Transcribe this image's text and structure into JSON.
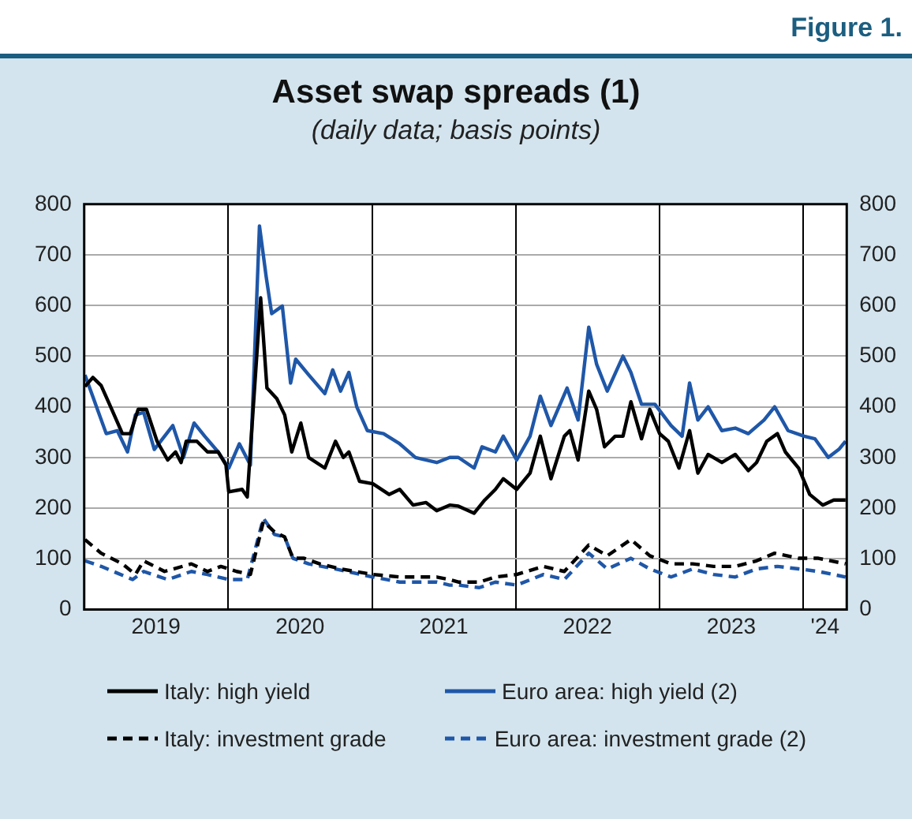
{
  "chart_data": {
    "type": "line",
    "title": "Asset swap spreads (1)",
    "subtitle": "(daily data; basis points)",
    "annotations": [
      "Figure 1."
    ],
    "xlim": [
      "2019-01-01",
      "2024-04-20"
    ],
    "xticks": [
      {
        "value": "2019-07-02",
        "label": "2019"
      },
      {
        "value": "2020-01-01",
        "label": null
      },
      {
        "value": "2020-07-02",
        "label": "2020"
      },
      {
        "value": "2021-01-01",
        "label": null
      },
      {
        "value": "2021-07-02",
        "label": "2021"
      },
      {
        "value": "2022-01-01",
        "label": null
      },
      {
        "value": "2022-07-02",
        "label": "2022"
      },
      {
        "value": "2023-01-01",
        "label": null
      },
      {
        "value": "2023-07-02",
        "label": "2023"
      },
      {
        "value": "2024-01-01",
        "label": null
      },
      {
        "value": "2024-02-25",
        "label": "'24"
      }
    ],
    "ylim": [
      0,
      800
    ],
    "yticks": [
      0,
      100,
      200,
      300,
      400,
      500,
      600,
      700,
      800
    ],
    "y2lim": [
      0,
      800
    ],
    "y2ticks": [
      0,
      100,
      200,
      300,
      400,
      500,
      600,
      700,
      800
    ],
    "grid": true,
    "legend": "bottom",
    "marker": "none",
    "series": [
      {
        "name": "Italy: high yield",
        "color": "#000000",
        "line_style": "solid",
        "x": [
          "2019-01-03",
          "2019-01-23",
          "2019-02-13",
          "2019-03-12",
          "2019-04-08",
          "2019-04-28",
          "2019-05-18",
          "2019-06-08",
          "2019-07-05",
          "2019-08-01",
          "2019-08-21",
          "2019-09-04",
          "2019-09-17",
          "2019-10-14",
          "2019-11-10",
          "2019-12-07",
          "2019-12-27",
          "2020-01-03",
          "2020-02-06",
          "2020-02-19",
          "2020-03-04",
          "2020-03-24",
          "2020-04-09",
          "2020-05-04",
          "2020-05-24",
          "2020-06-11",
          "2020-07-04",
          "2020-07-24",
          "2020-09-03",
          "2020-09-30",
          "2020-10-20",
          "2020-11-03",
          "2020-11-30",
          "2021-01-03",
          "2021-02-13",
          "2021-03-12",
          "2021-04-15",
          "2021-05-18",
          "2021-06-14",
          "2021-07-17",
          "2021-08-08",
          "2021-09-17",
          "2021-10-14",
          "2021-11-10",
          "2021-11-30",
          "2022-01-03",
          "2022-02-06",
          "2022-03-04",
          "2022-03-31",
          "2022-05-04",
          "2022-05-18",
          "2022-06-08",
          "2022-07-05",
          "2022-07-25",
          "2022-08-14",
          "2022-09-10",
          "2022-09-30",
          "2022-10-20",
          "2022-11-16",
          "2022-12-07",
          "2023-01-01",
          "2023-01-23",
          "2023-02-19",
          "2023-03-18",
          "2023-04-08",
          "2023-05-04",
          "2023-06-08",
          "2023-07-12",
          "2023-08-14",
          "2023-09-04",
          "2023-09-30",
          "2023-10-27",
          "2023-11-16",
          "2023-12-20",
          "2024-01-17",
          "2024-02-19",
          "2024-03-18",
          "2024-04-17"
        ],
        "values": [
          440,
          458,
          442,
          395,
          347,
          347,
          395,
          395,
          332,
          295,
          311,
          290,
          332,
          332,
          311,
          311,
          285,
          232,
          237,
          222,
          384,
          615,
          437,
          416,
          384,
          311,
          368,
          300,
          279,
          332,
          300,
          311,
          253,
          248,
          227,
          237,
          206,
          211,
          195,
          206,
          204,
          190,
          216,
          237,
          258,
          237,
          269,
          342,
          258,
          342,
          353,
          295,
          431,
          395,
          321,
          342,
          342,
          410,
          337,
          395,
          347,
          332,
          279,
          353,
          269,
          306,
          290,
          306,
          274,
          290,
          332,
          347,
          311,
          279,
          227,
          206,
          216,
          216
        ]
      },
      {
        "name": "Euro area: high yield (2)",
        "color": "#1f57a8",
        "line_style": "solid",
        "x": [
          "2019-01-03",
          "2019-01-30",
          "2019-02-26",
          "2019-03-26",
          "2019-04-21",
          "2019-05-11",
          "2019-06-01",
          "2019-06-28",
          "2019-08-14",
          "2019-09-10",
          "2019-10-07",
          "2019-11-03",
          "2019-12-07",
          "2020-01-03",
          "2020-01-30",
          "2020-02-27",
          "2020-03-21",
          "2020-04-07",
          "2020-04-21",
          "2020-05-18",
          "2020-06-08",
          "2020-06-21",
          "2020-07-24",
          "2020-09-03",
          "2020-09-23",
          "2020-10-13",
          "2020-11-03",
          "2020-11-23",
          "2020-12-20",
          "2021-01-30",
          "2021-03-12",
          "2021-04-21",
          "2021-06-14",
          "2021-07-17",
          "2021-08-08",
          "2021-09-17",
          "2021-10-07",
          "2021-11-10",
          "2021-11-30",
          "2022-01-03",
          "2022-02-06",
          "2022-03-04",
          "2022-03-31",
          "2022-05-11",
          "2022-06-08",
          "2022-07-05",
          "2022-07-25",
          "2022-08-21",
          "2022-09-30",
          "2022-10-20",
          "2022-11-16",
          "2022-12-20",
          "2023-01-30",
          "2023-02-27",
          "2023-03-18",
          "2023-04-08",
          "2023-05-04",
          "2023-06-08",
          "2023-07-12",
          "2023-08-14",
          "2023-09-23",
          "2023-10-20",
          "2023-11-23",
          "2024-01-03",
          "2024-01-30",
          "2024-03-04",
          "2024-03-31",
          "2024-04-17"
        ],
        "values": [
          463,
          405,
          347,
          353,
          311,
          384,
          389,
          316,
          363,
          300,
          368,
          342,
          311,
          279,
          327,
          285,
          757,
          657,
          584,
          599,
          447,
          494,
          463,
          426,
          473,
          431,
          468,
          400,
          353,
          347,
          327,
          300,
          290,
          300,
          300,
          279,
          321,
          311,
          342,
          295,
          342,
          421,
          363,
          437,
          374,
          557,
          484,
          431,
          500,
          468,
          405,
          405,
          363,
          342,
          447,
          374,
          400,
          353,
          358,
          347,
          374,
          400,
          353,
          342,
          337,
          300,
          316,
          332
        ]
      },
      {
        "name": "Italy: investment grade",
        "color": "#000000",
        "line_style": "dashed",
        "x": [
          "2019-01-03",
          "2019-02-13",
          "2019-04-08",
          "2019-05-11",
          "2019-06-01",
          "2019-07-24",
          "2019-09-30",
          "2019-11-10",
          "2019-12-14",
          "2020-01-23",
          "2020-02-27",
          "2020-03-31",
          "2020-04-28",
          "2020-05-24",
          "2020-06-14",
          "2020-07-12",
          "2020-08-21",
          "2020-10-13",
          "2021-01-03",
          "2021-03-12",
          "2021-06-14",
          "2021-07-17",
          "2021-08-08",
          "2021-09-30",
          "2021-11-10",
          "2022-01-03",
          "2022-03-12",
          "2022-05-04",
          "2022-07-05",
          "2022-08-21",
          "2022-10-20",
          "2022-12-07",
          "2023-01-30",
          "2023-03-26",
          "2023-05-18",
          "2023-07-12",
          "2023-09-04",
          "2023-10-20",
          "2023-12-20",
          "2024-02-08",
          "2024-04-17"
        ],
        "values": [
          138,
          111,
          90,
          69,
          96,
          75,
          90,
          75,
          85,
          75,
          69,
          174,
          153,
          143,
          101,
          101,
          90,
          80,
          69,
          64,
          64,
          59,
          54,
          54,
          64,
          69,
          85,
          75,
          127,
          106,
          138,
          106,
          90,
          90,
          85,
          85,
          96,
          111,
          101,
          101,
          90
        ]
      },
      {
        "name": "Euro area: investment grade (2)",
        "color": "#1f57a8",
        "line_style": "dashed",
        "x": [
          "2019-01-03",
          "2019-02-13",
          "2019-05-04",
          "2019-06-01",
          "2019-08-01",
          "2019-09-30",
          "2019-11-10",
          "2020-01-03",
          "2020-02-19",
          "2020-03-31",
          "2020-04-28",
          "2020-05-24",
          "2020-06-14",
          "2020-07-24",
          "2020-09-30",
          "2021-01-03",
          "2021-03-12",
          "2021-06-14",
          "2021-07-17",
          "2021-08-08",
          "2021-09-30",
          "2021-11-10",
          "2022-01-03",
          "2022-03-12",
          "2022-05-04",
          "2022-07-05",
          "2022-08-21",
          "2022-10-20",
          "2022-12-07",
          "2023-01-30",
          "2023-03-26",
          "2023-05-18",
          "2023-07-12",
          "2023-09-04",
          "2023-10-27",
          "2023-12-20",
          "2024-02-08",
          "2024-04-17"
        ],
        "values": [
          96,
          85,
          59,
          75,
          59,
          75,
          69,
          59,
          59,
          180,
          148,
          143,
          101,
          90,
          80,
          64,
          54,
          54,
          48,
          48,
          43,
          54,
          48,
          69,
          59,
          111,
          80,
          101,
          80,
          64,
          80,
          69,
          64,
          80,
          85,
          80,
          75,
          64
        ]
      }
    ]
  }
}
